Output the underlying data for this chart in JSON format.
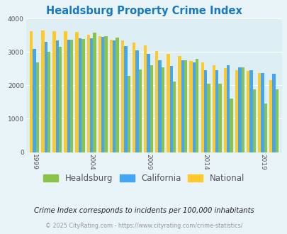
{
  "title": "Healdsburg Property Crime Index",
  "title_color": "#1a78c2",
  "subtitle": "Crime Index corresponds to incidents per 100,000 inhabitants",
  "footer": "© 2025 CityRating.com - https://www.cityrating.com/crime-statistics/",
  "years": [
    1999,
    2000,
    2001,
    2002,
    2003,
    2004,
    2005,
    2006,
    2007,
    2008,
    2009,
    2010,
    2011,
    2012,
    2013,
    2014,
    2015,
    2016,
    2017,
    2018,
    2019,
    2020
  ],
  "healdsburg": [
    2700,
    3000,
    3150,
    3380,
    3400,
    3580,
    3480,
    3430,
    2280,
    2480,
    2600,
    2550,
    2120,
    2750,
    2800,
    2060,
    2060,
    1600,
    2550,
    1880,
    1460,
    1880
  ],
  "california": [
    3100,
    3300,
    3340,
    3380,
    3420,
    3420,
    3460,
    3340,
    3170,
    3060,
    2940,
    2750,
    2580,
    2760,
    2680,
    2460,
    2450,
    2610,
    2550,
    2460,
    2370,
    2340
  ],
  "national": [
    3620,
    3650,
    3620,
    3620,
    3600,
    3520,
    3470,
    3370,
    3350,
    3290,
    3210,
    3040,
    2940,
    2890,
    2740,
    2700,
    2600,
    2510,
    2460,
    2440,
    2370,
    2150
  ],
  "healdsburg_color": "#8bc34a",
  "california_color": "#42a5f5",
  "national_color": "#ffca28",
  "background_color": "#e8f4f8",
  "plot_bg_color": "#ddeef5",
  "ylim": [
    0,
    4000
  ],
  "yticks": [
    0,
    1000,
    2000,
    3000,
    4000
  ],
  "xtick_labels_at": [
    1999,
    2004,
    2009,
    2014,
    2019
  ],
  "legend_labels": [
    "Healdsburg",
    "California",
    "National"
  ],
  "legend_fontsize": 8.5,
  "tick_label_color": "#555555",
  "grid_color": "#ffffff",
  "bar_width": 0.27
}
